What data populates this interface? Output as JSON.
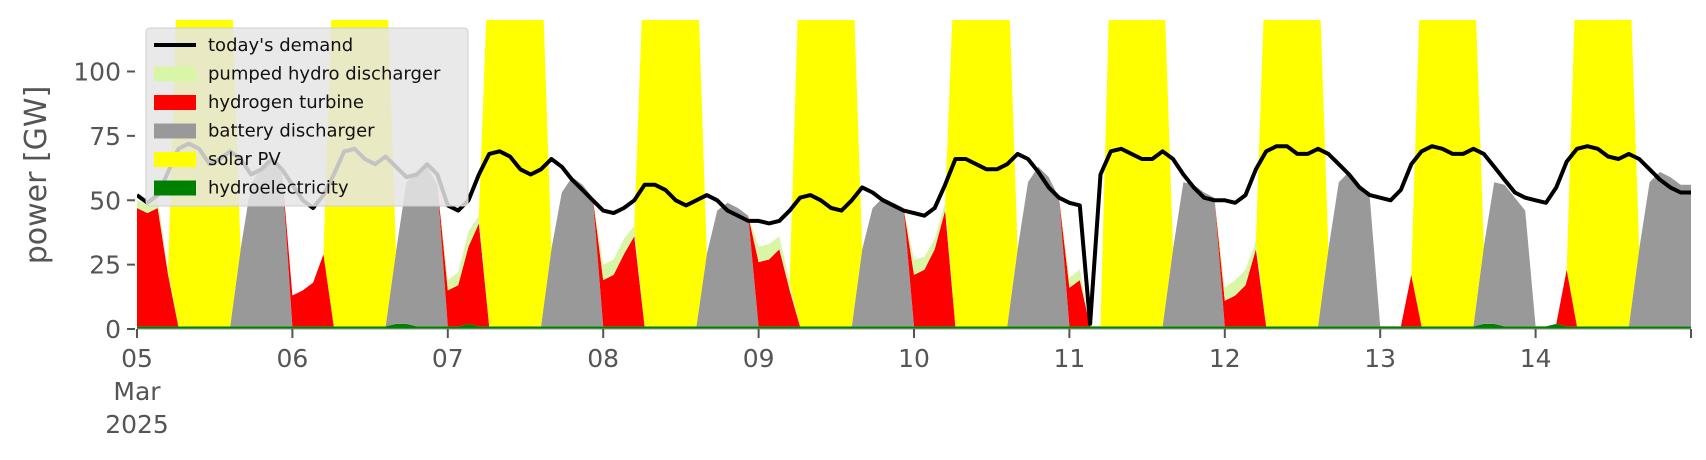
{
  "chart_data": {
    "type": "area",
    "ylabel": "power [GW]",
    "ylim": [
      0,
      120
    ],
    "yticks": [
      0,
      25,
      50,
      75,
      100
    ],
    "x_range_days": [
      "2025-03-05",
      "2025-03-15"
    ],
    "xticks": [
      {
        "line1": "05",
        "line2": "Mar",
        "line3": "2025"
      },
      {
        "line1": "06"
      },
      {
        "line1": "07"
      },
      {
        "line1": "08"
      },
      {
        "line1": "09"
      },
      {
        "line1": "10"
      },
      {
        "line1": "11"
      },
      {
        "line1": "12"
      },
      {
        "line1": "13"
      },
      {
        "line1": "14"
      }
    ],
    "grid": false,
    "legend_position": "upper-left",
    "legend": [
      {
        "name": "today's demand",
        "kind": "line",
        "color": "#000000"
      },
      {
        "name": "pumped hydro discharger",
        "kind": "patch",
        "color": "#d9f5a6"
      },
      {
        "name": "hydrogen turbine",
        "kind": "patch",
        "color": "#ff0000"
      },
      {
        "name": "battery discharger",
        "kind": "patch",
        "color": "#999999"
      },
      {
        "name": "solar PV",
        "kind": "patch",
        "color": "#ffff00"
      },
      {
        "name": "hydroelectricity",
        "kind": "patch",
        "color": "#008000"
      }
    ],
    "series_order_bottom_to_top": [
      "hydroelectricity",
      "battery discharger",
      "hydrogen turbine",
      "pumped hydro discharger",
      "solar PV"
    ],
    "days": [
      {
        "date": "2025-03-05",
        "demand": [
          52,
          49,
          52,
          61,
          70,
          72,
          70,
          64,
          66,
          69,
          66,
          60,
          62,
          66,
          62
        ],
        "hydro": [
          1,
          1,
          1,
          1,
          1,
          1,
          1,
          1,
          1,
          1,
          1,
          1,
          1,
          1,
          1
        ],
        "battery": [
          0,
          0,
          0,
          0,
          0,
          0,
          0,
          0,
          0,
          0,
          30,
          55,
          62,
          65,
          60
        ],
        "hydrogen": [
          46,
          44,
          46,
          20,
          0,
          0,
          0,
          0,
          0,
          0,
          0,
          0,
          0,
          0,
          0
        ],
        "pumped": [
          3,
          3,
          4,
          2,
          0,
          0,
          0,
          0,
          0,
          0,
          0,
          0,
          0,
          0,
          0
        ],
        "solar": [
          0,
          0,
          0,
          0,
          150,
          150,
          150,
          150,
          150,
          150,
          0,
          0,
          0,
          0,
          0
        ]
      },
      {
        "date": "2025-03-06",
        "demand": [
          56,
          50,
          47,
          52,
          60,
          69,
          70,
          66,
          64,
          67,
          63,
          59,
          60,
          64,
          60
        ],
        "hydro": [
          1,
          1,
          1,
          1,
          1,
          1,
          1,
          1,
          1,
          1,
          2,
          2,
          1,
          1,
          1
        ],
        "battery": [
          0,
          0,
          0,
          0,
          0,
          0,
          0,
          0,
          0,
          0,
          28,
          55,
          60,
          62,
          55
        ],
        "hydrogen": [
          12,
          14,
          17,
          28,
          0,
          0,
          0,
          0,
          0,
          0,
          0,
          0,
          0,
          0,
          0
        ],
        "pumped": [
          0,
          0,
          0,
          0,
          0,
          0,
          0,
          0,
          0,
          0,
          0,
          0,
          0,
          0,
          0
        ],
        "solar": [
          0,
          0,
          0,
          0,
          150,
          150,
          150,
          150,
          150,
          150,
          0,
          0,
          0,
          0,
          0
        ]
      },
      {
        "date": "2025-03-07",
        "demand": [
          48,
          46,
          50,
          60,
          68,
          69,
          67,
          62,
          60,
          62,
          66,
          63,
          58,
          54,
          50
        ],
        "hydro": [
          1,
          1,
          2,
          1,
          1,
          1,
          1,
          1,
          1,
          1,
          1,
          1,
          1,
          1,
          1
        ],
        "battery": [
          0,
          0,
          0,
          0,
          0,
          0,
          0,
          0,
          0,
          0,
          30,
          52,
          58,
          55,
          50
        ],
        "hydrogen": [
          14,
          16,
          30,
          40,
          0,
          0,
          0,
          0,
          0,
          0,
          0,
          0,
          0,
          0,
          0
        ],
        "pumped": [
          4,
          5,
          6,
          3,
          0,
          0,
          0,
          0,
          0,
          0,
          0,
          0,
          0,
          0,
          0
        ],
        "solar": [
          0,
          0,
          0,
          0,
          150,
          150,
          150,
          150,
          150,
          150,
          0,
          0,
          0,
          0,
          0
        ]
      },
      {
        "date": "2025-03-08",
        "demand": [
          46,
          45,
          47,
          50,
          56,
          56,
          54,
          50,
          48,
          50,
          52,
          50,
          46,
          44,
          42
        ],
        "hydro": [
          1,
          1,
          1,
          1,
          1,
          1,
          1,
          1,
          1,
          1,
          1,
          1,
          1,
          1,
          1
        ],
        "battery": [
          0,
          0,
          0,
          0,
          0,
          0,
          0,
          0,
          0,
          0,
          28,
          45,
          48,
          46,
          43
        ],
        "hydrogen": [
          18,
          20,
          28,
          35,
          0,
          0,
          0,
          0,
          0,
          0,
          0,
          0,
          0,
          0,
          0
        ],
        "pumped": [
          6,
          6,
          6,
          4,
          0,
          0,
          0,
          0,
          0,
          0,
          0,
          0,
          0,
          0,
          0
        ],
        "solar": [
          0,
          0,
          0,
          0,
          150,
          150,
          150,
          150,
          150,
          150,
          0,
          0,
          0,
          0,
          0
        ]
      },
      {
        "date": "2025-03-09",
        "demand": [
          42,
          41,
          42,
          46,
          51,
          52,
          50,
          47,
          46,
          50,
          55,
          53,
          50,
          48,
          46
        ],
        "hydro": [
          1,
          1,
          1,
          1,
          1,
          1,
          1,
          1,
          1,
          1,
          1,
          1,
          1,
          1,
          1
        ],
        "battery": [
          0,
          0,
          0,
          0,
          0,
          0,
          0,
          0,
          0,
          0,
          30,
          46,
          50,
          48,
          46
        ],
        "hydrogen": [
          25,
          26,
          30,
          14,
          0,
          0,
          0,
          0,
          0,
          0,
          0,
          0,
          0,
          0,
          0
        ],
        "pumped": [
          6,
          6,
          5,
          3,
          0,
          0,
          0,
          0,
          0,
          0,
          0,
          0,
          0,
          0,
          0
        ],
        "solar": [
          0,
          0,
          0,
          0,
          150,
          150,
          150,
          150,
          150,
          150,
          0,
          0,
          0,
          0,
          0
        ]
      },
      {
        "date": "2025-03-10",
        "demand": [
          45,
          44,
          47,
          56,
          66,
          66,
          64,
          62,
          62,
          64,
          68,
          66,
          61,
          55,
          51
        ],
        "hydro": [
          1,
          1,
          1,
          1,
          1,
          1,
          1,
          1,
          1,
          1,
          1,
          1,
          1,
          1,
          1
        ],
        "battery": [
          0,
          0,
          0,
          0,
          0,
          0,
          0,
          0,
          0,
          0,
          30,
          56,
          62,
          58,
          50
        ],
        "hydrogen": [
          20,
          22,
          30,
          45,
          0,
          0,
          0,
          0,
          0,
          0,
          0,
          0,
          0,
          0,
          0
        ],
        "pumped": [
          6,
          5,
          4,
          3,
          0,
          0,
          0,
          0,
          0,
          0,
          0,
          0,
          0,
          0,
          0
        ],
        "solar": [
          0,
          0,
          0,
          0,
          150,
          150,
          150,
          150,
          150,
          150,
          0,
          0,
          0,
          0,
          0
        ]
      },
      {
        "date": "2025-03-11",
        "demand": [
          49,
          48,
          2,
          60,
          69,
          70,
          68,
          66,
          66,
          69,
          66,
          60,
          55,
          51,
          50
        ],
        "hydro": [
          1,
          1,
          1,
          1,
          1,
          1,
          1,
          1,
          1,
          1,
          1,
          1,
          1,
          1,
          1
        ],
        "battery": [
          0,
          0,
          0,
          0,
          0,
          0,
          0,
          0,
          0,
          0,
          30,
          56,
          55,
          52,
          50
        ],
        "hydrogen": [
          15,
          18,
          0,
          0,
          0,
          0,
          0,
          0,
          0,
          0,
          0,
          0,
          0,
          0,
          0
        ],
        "pumped": [
          4,
          4,
          0,
          0,
          0,
          0,
          0,
          0,
          0,
          0,
          0,
          0,
          0,
          0,
          0
        ],
        "solar": [
          0,
          0,
          0,
          0,
          150,
          150,
          150,
          150,
          150,
          150,
          0,
          0,
          0,
          0,
          0
        ]
      },
      {
        "date": "2025-03-12",
        "demand": [
          50,
          49,
          52,
          62,
          69,
          71,
          71,
          68,
          68,
          70,
          68,
          64,
          60,
          55,
          52
        ],
        "hydro": [
          1,
          1,
          1,
          1,
          1,
          1,
          1,
          1,
          1,
          1,
          1,
          1,
          1,
          1,
          1
        ],
        "battery": [
          0,
          0,
          0,
          0,
          0,
          0,
          0,
          0,
          0,
          0,
          30,
          56,
          60,
          55,
          50
        ],
        "hydrogen": [
          10,
          12,
          16,
          30,
          0,
          0,
          0,
          0,
          0,
          0,
          0,
          0,
          0,
          0,
          0
        ],
        "pumped": [
          5,
          6,
          6,
          3,
          0,
          0,
          0,
          0,
          0,
          0,
          0,
          0,
          0,
          0,
          0
        ],
        "solar": [
          0,
          0,
          0,
          0,
          150,
          150,
          150,
          150,
          150,
          150,
          0,
          0,
          0,
          0,
          0
        ]
      },
      {
        "date": "2025-03-13",
        "demand": [
          51,
          50,
          54,
          64,
          69,
          71,
          70,
          68,
          68,
          70,
          68,
          63,
          58,
          53,
          51
        ],
        "hydro": [
          1,
          1,
          1,
          1,
          1,
          1,
          1,
          1,
          1,
          1,
          2,
          2,
          1,
          1,
          1
        ],
        "battery": [
          0,
          0,
          0,
          0,
          0,
          0,
          0,
          0,
          0,
          0,
          30,
          55,
          55,
          50,
          45
        ],
        "hydrogen": [
          0,
          0,
          0,
          20,
          0,
          0,
          0,
          0,
          0,
          0,
          0,
          0,
          0,
          0,
          0
        ],
        "pumped": [
          0,
          0,
          0,
          0,
          0,
          0,
          0,
          0,
          0,
          0,
          0,
          0,
          0,
          0,
          0
        ],
        "solar": [
          0,
          0,
          0,
          0,
          150,
          150,
          150,
          150,
          150,
          150,
          0,
          0,
          0,
          0,
          0
        ]
      },
      {
        "date": "2025-03-14",
        "demand": [
          50,
          49,
          55,
          65,
          70,
          71,
          70,
          67,
          66,
          68,
          66,
          62,
          58,
          55,
          53
        ],
        "hydro": [
          1,
          1,
          2,
          1,
          1,
          1,
          1,
          1,
          1,
          1,
          1,
          1,
          1,
          1,
          1
        ],
        "battery": [
          0,
          0,
          0,
          0,
          0,
          0,
          0,
          0,
          0,
          0,
          30,
          56,
          60,
          58,
          55
        ],
        "hydrogen": [
          0,
          0,
          0,
          22,
          0,
          0,
          0,
          0,
          0,
          0,
          0,
          0,
          0,
          0,
          0
        ],
        "pumped": [
          0,
          0,
          0,
          0,
          0,
          0,
          0,
          0,
          0,
          0,
          0,
          0,
          0,
          0,
          0
        ],
        "solar": [
          0,
          0,
          0,
          0,
          150,
          150,
          150,
          150,
          150,
          150,
          0,
          0,
          0,
          0,
          0
        ]
      }
    ]
  }
}
